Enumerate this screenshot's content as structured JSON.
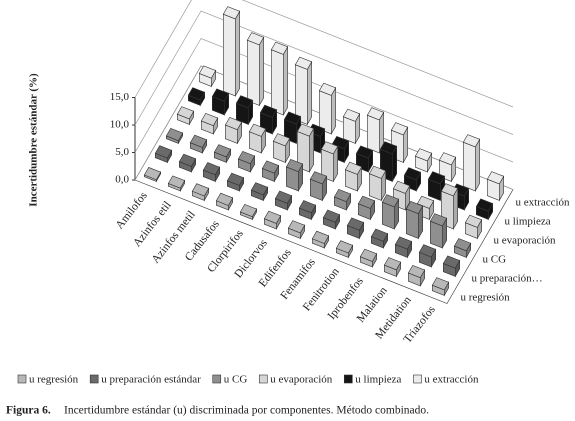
{
  "chart_data": {
    "type": "bar3d",
    "y_label": "Incertidumbre estándar (%)",
    "categories": [
      "Amilofos",
      "Azinfos etil",
      "Azinfos metil",
      "Cadusafos",
      "Clorpirifos",
      "Diclorvos",
      "Edifenfos",
      "Fenamifos",
      "Fenitrotion",
      "Iprobenfos",
      "Malation",
      "Metidation",
      "Triazofos"
    ],
    "depth_labels": [
      "u regresión",
      "u preparación…",
      "u CG",
      "u evaporación",
      "u limpieza",
      "u extracción"
    ],
    "series": [
      {
        "name": "u regresión",
        "color": "#b8b8b8",
        "values": [
          0.3,
          0.5,
          0.8,
          0.8,
          0.5,
          1.0,
          1.0,
          0.8,
          0.8,
          1.0,
          1.2,
          1.5,
          1.0
        ]
      },
      {
        "name": "u preparación estándar",
        "color": "#6a6a6a",
        "values": [
          0.8,
          1.0,
          1.2,
          1.0,
          1.0,
          1.2,
          1.2,
          1.2,
          1.5,
          1.2,
          1.5,
          1.8,
          1.5
        ]
      },
      {
        "name": "u CG",
        "color": "#8f8f8f",
        "values": [
          0.5,
          1.0,
          1.0,
          1.5,
          1.5,
          3.5,
          3.0,
          1.5,
          2.0,
          4.0,
          4.5,
          4.0,
          1.2
        ]
      },
      {
        "name": "u evaporación",
        "color": "#d6d6d6",
        "values": [
          1.0,
          1.5,
          2.5,
          3.0,
          3.0,
          6.5,
          5.0,
          3.0,
          4.0,
          3.0,
          2.0,
          6.0,
          2.0
        ]
      },
      {
        "name": "u limpieza",
        "color": "#151515",
        "values": [
          1.0,
          2.5,
          3.0,
          3.0,
          3.5,
          3.0,
          2.5,
          2.5,
          5.0,
          2.0,
          3.0,
          2.5,
          1.5
        ]
      },
      {
        "name": "u extracción",
        "color": "#ececec",
        "values": [
          1.5,
          14.0,
          11.0,
          11.0,
          10.0,
          7.0,
          4.0,
          6.0,
          5.0,
          2.0,
          3.0,
          8.0,
          3.0
        ]
      }
    ],
    "ylim": [
      0,
      15
    ],
    "yticks": [
      {
        "value": 0,
        "label": "0,0"
      },
      {
        "value": 5,
        "label": "5,0"
      },
      {
        "value": 10,
        "label": "10,0"
      },
      {
        "value": 15,
        "label": "15,0"
      }
    ],
    "grid": true
  },
  "caption": {
    "label": "Figura 6.",
    "text": "Incertidumbre estándar (u) discriminada por componentes. Método combinado."
  }
}
